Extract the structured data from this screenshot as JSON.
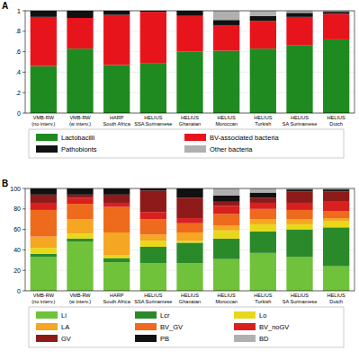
{
  "chart_data": [
    {
      "type": "bar",
      "title": "A",
      "stacked": true,
      "categories": [
        "VMB-RW (no interv.)",
        "VMB-RW (w interv.)",
        "HARP South Africa",
        "HELIUS SSA Surinamese",
        "HELIUS Ghanaian",
        "HELIUS Moroccan",
        "HELIUS Turkish",
        "HELIUS SA Surinamese",
        "HELIUS Dutch"
      ],
      "series": [
        {
          "name": "Lactobacilli",
          "color": "#1f8a1f",
          "values": [
            0.46,
            0.63,
            0.47,
            0.49,
            0.6,
            0.61,
            0.63,
            0.66,
            0.72
          ]
        },
        {
          "name": "BV-associated bacteria",
          "color": "#e8141c",
          "values": [
            0.48,
            0.3,
            0.49,
            0.5,
            0.35,
            0.25,
            0.27,
            0.28,
            0.25
          ]
        },
        {
          "name": "Pathobionts",
          "color": "#111111",
          "values": [
            0.06,
            0.07,
            0.04,
            0.01,
            0.05,
            0.05,
            0.05,
            0.04,
            0.02
          ]
        },
        {
          "name": "Other bacteria",
          "color": "#b0b0b0",
          "values": [
            0,
            0,
            0,
            0,
            0,
            0.09,
            0.05,
            0.02,
            0.01
          ]
        }
      ],
      "ylim": [
        0,
        1
      ],
      "yticks": [
        0,
        {
          "value": 0.2,
          "label": ".2"
        },
        {
          "value": 0.4,
          "label": ".4"
        },
        {
          "value": 0.6,
          "label": ".6"
        },
        {
          "value": 0.8,
          "label": ".8"
        },
        1
      ]
    },
    {
      "type": "bar",
      "title": "B",
      "stacked": true,
      "categories": [
        "VMB-RW (no interv.)",
        "VMB-RW (w interv.)",
        "HARP South Africa",
        "HELIUS SSA Surinamese",
        "HELIUS Ghanaian",
        "HELIUS Moroccan",
        "HELIUS Turkish",
        "HELIUS SA Surinamese",
        "HELIUS Dutch"
      ],
      "series": [
        {
          "name": "Li",
          "color": "#6fc23a",
          "values": [
            33,
            48,
            28,
            27,
            27,
            31,
            37,
            33,
            24
          ]
        },
        {
          "name": "Lcr",
          "color": "#2a8a2a",
          "values": [
            3,
            3,
            4,
            16,
            20,
            20,
            21,
            27,
            38
          ]
        },
        {
          "name": "Lo",
          "color": "#e8d81a",
          "values": [
            6,
            5,
            3,
            6,
            2,
            8,
            7,
            5,
            6
          ]
        },
        {
          "name": "LA",
          "color": "#f5a623",
          "values": [
            11,
            14,
            22,
            6,
            8,
            5,
            5,
            5,
            3
          ]
        },
        {
          "name": "BV_GV",
          "color": "#ee6a1c",
          "values": [
            26,
            15,
            25,
            15,
            9,
            11,
            10,
            9,
            7
          ]
        },
        {
          "name": "BV_noGV",
          "color": "#d8201e",
          "values": [
            7,
            6,
            4,
            7,
            5,
            8,
            6,
            7,
            9
          ]
        },
        {
          "name": "GV",
          "color": "#8e1a1a",
          "values": [
            8,
            3,
            8,
            21,
            20,
            4,
            5,
            11,
            10
          ]
        },
        {
          "name": "PB",
          "color": "#111111",
          "values": [
            6,
            6,
            6,
            2,
            9,
            6,
            5,
            2,
            2
          ]
        },
        {
          "name": "BD",
          "color": "#b0b0b0",
          "values": [
            0,
            0,
            0,
            0,
            0,
            7,
            4,
            1,
            1
          ]
        }
      ],
      "ylim": [
        0,
        100
      ],
      "yticks": [
        0,
        20,
        40,
        60,
        80,
        100
      ]
    }
  ]
}
